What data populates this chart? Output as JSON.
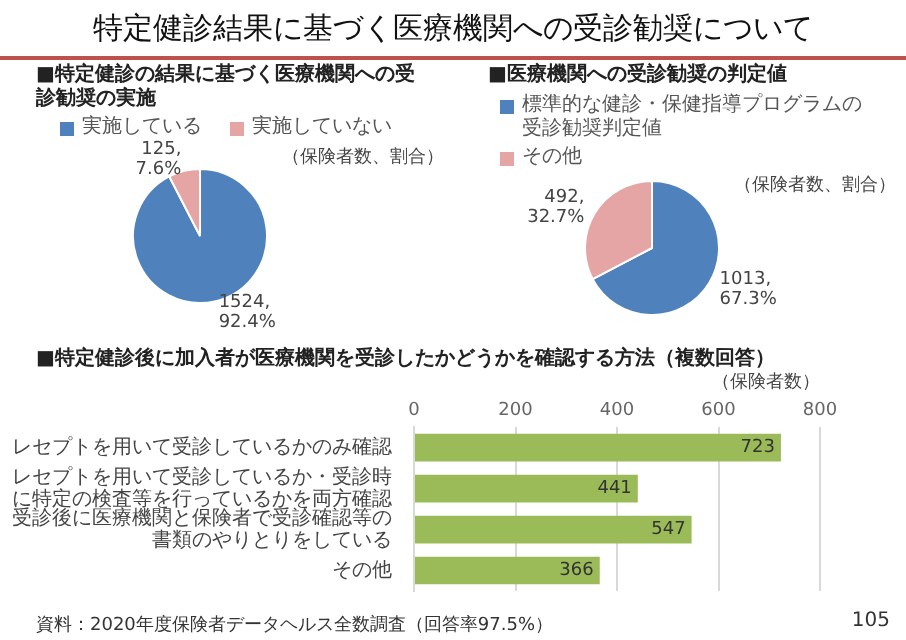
{
  "chart_data": [
    {
      "type": "pie",
      "title": "特定健診結果に基づく医療機関への受診勧奨について",
      "subtitle": "■特定健診の結果に基づく医療機関への受診勧奨の実施",
      "categories": [
        "実施している",
        "実施していない"
      ],
      "values": [
        1524,
        125
      ],
      "colors": [
        "#4f81bd",
        "#e6a5a5"
      ],
      "value_labels": [
        "1524,\n92.4%",
        "125,\n7.6%"
      ],
      "legend": "top",
      "annotations": [
        "（保険者数、割合）"
      ]
    },
    {
      "type": "pie",
      "title": "■医療機関への受診勧奨の判定値",
      "categories": [
        "標準的な健診・保健指導プログラムの受診勧奨判定値",
        "その他"
      ],
      "values": [
        1013,
        492
      ],
      "colors": [
        "#4f81bd",
        "#e6a5a5"
      ],
      "value_labels": [
        "1013,\n67.3%",
        "492,\n32.7%"
      ],
      "legend": "top",
      "annotations": [
        "（保険者数、割合）"
      ]
    },
    {
      "type": "bar",
      "orientation": "horizontal",
      "title": "■特定健診後に加入者が医療機関を受診したかどうかを確認する方法（複数回答）",
      "xlabel": "（保険者数）",
      "categories": [
        "レセプトを用いて受診しているかのみ確認",
        "レセプトを用いて受診しているか・受診時に特定の検査等を行っているかを両方確認",
        "受診後に医療機関と保険者で受診確認等の書類のやりとりをしている",
        "その他"
      ],
      "values": [
        723,
        441,
        547,
        366
      ],
      "color": "#9bbb59",
      "xlim": [
        0,
        800
      ],
      "xticks": [
        0,
        200,
        400,
        600,
        800
      ],
      "grid": "x",
      "data_labels": true,
      "annotations": [
        "資料：2020年度保険者データヘルス全数調査（回答率97.5%）",
        "105"
      ]
    }
  ]
}
